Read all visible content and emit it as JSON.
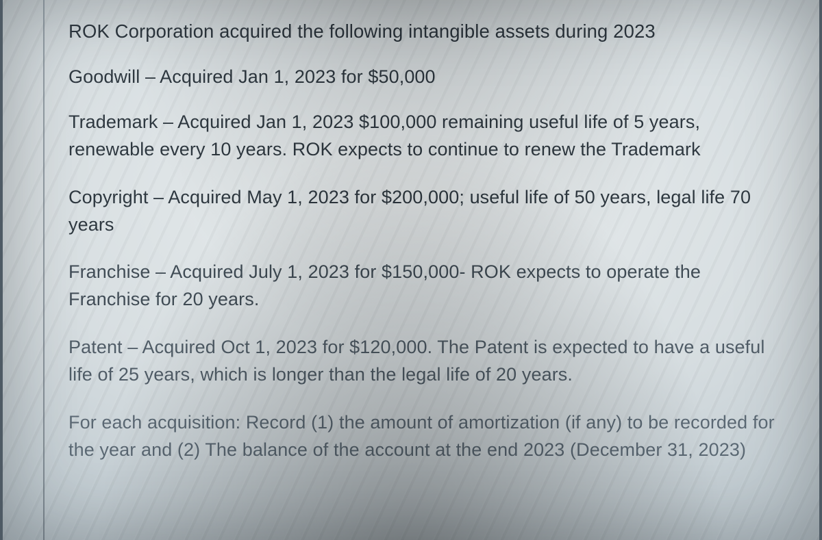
{
  "paragraphs": [
    "ROK Corporation acquired the following intangible assets during 2023",
    "Goodwill – Acquired Jan 1, 2023 for $50,000",
    "Trademark – Acquired Jan 1, 2023 $100,000 remaining useful life of 5 years, renewable every 10 years. ROK expects to continue to renew the Trademark",
    "Copyright – Acquired May 1, 2023 for $200,000; useful life of 50 years, legal life 70 years",
    "Franchise – Acquired July 1, 2023 for $150,000- ROK expects to operate the Franchise for 20 years.",
    "Patent – Acquired Oct 1, 2023 for $120,000. The Patent is expected to have a useful life of 25 years, which is longer than the legal life of 20 years.",
    "For each acquisition: Record (1) the amount of amortization (if any) to be recorded for the year and (2) The balance of the account at the end 2023 (December 31, 2023)"
  ]
}
